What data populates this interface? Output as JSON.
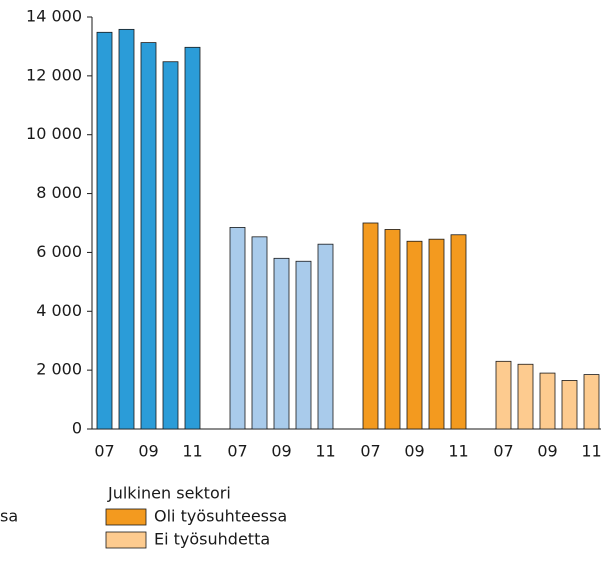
{
  "chart_data": {
    "type": "bar",
    "categories": [
      "07",
      null,
      "09",
      null,
      "11"
    ],
    "series": [
      {
        "name": "sa",
        "color": "#2b9cd8",
        "values": [
          13480,
          13580,
          13130,
          12480,
          12970
        ]
      },
      {
        "color": "#a9cbeb",
        "values": [
          6850,
          6530,
          5800,
          5700,
          6280
        ]
      },
      {
        "name": "Oli työsuhteessa",
        "color": "#f39a1f",
        "values": [
          7000,
          6780,
          6380,
          6450,
          6600
        ]
      },
      {
        "name": "Ei työsuhdetta",
        "color": "#fdcb8f",
        "values": [
          2300,
          2200,
          1900,
          1650,
          1850
        ]
      }
    ],
    "legend_title": "Julkinen sektori",
    "ylim": [
      0,
      14000
    ],
    "yticks": [
      0,
      {
        "value": 2000,
        "label": "2 000"
      },
      {
        "value": 4000,
        "label": "4 000"
      },
      {
        "value": 6000,
        "label": "6 000"
      },
      {
        "value": 8000,
        "label": "8 000"
      },
      {
        "value": 10000,
        "label": "10 000"
      },
      {
        "value": 12000,
        "label": "12 000"
      },
      {
        "value": 14000,
        "label": "14 000"
      }
    ]
  }
}
